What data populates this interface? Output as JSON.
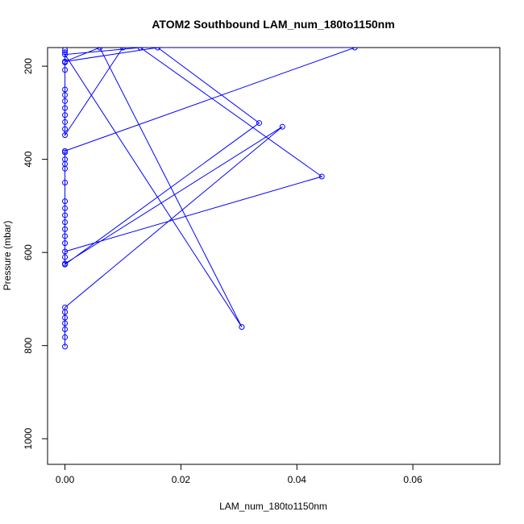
{
  "chart_data": {
    "type": "line",
    "title": "ATOM2 Southbound LAM_num_180to1150nm",
    "xlabel": "LAM_num_180to1150nm",
    "ylabel": "Pressure (mbar)",
    "xlim": [
      -0.003,
      0.075
    ],
    "ylim": [
      1055,
      160
    ],
    "y_reversed": true,
    "x_ticks": [
      0,
      0.02,
      0.04,
      0.06
    ],
    "x_tick_labels": [
      "0.00",
      "0.02",
      "0.04",
      "0.06"
    ],
    "y_ticks": [
      200,
      400,
      600,
      800,
      1000
    ],
    "y_tick_labels": [
      "200",
      "400",
      "600",
      "800",
      "1000"
    ],
    "grid": false,
    "series": [
      {
        "color": "#0000ff",
        "marker": "open-circle",
        "points": [
          {
            "x": 0,
            "y": 802
          },
          {
            "x": 0,
            "y": 782
          },
          {
            "x": 0,
            "y": 765
          },
          {
            "x": 0,
            "y": 752
          },
          {
            "x": 0,
            "y": 740
          },
          {
            "x": 0,
            "y": 728
          },
          {
            "x": 0,
            "y": 718
          },
          {
            "x": 0.0375,
            "y": 330
          },
          {
            "x": 0,
            "y": 624
          },
          {
            "x": 0,
            "y": 610
          },
          {
            "x": 0,
            "y": 598
          },
          {
            "x": 0.0443,
            "y": 437
          },
          {
            "x": 0.013,
            "y": 160
          },
          {
            "x": 0,
            "y": 175
          },
          {
            "x": 0.0305,
            "y": 760
          },
          {
            "x": 0.006,
            "y": 160
          },
          {
            "x": 0,
            "y": 190
          },
          {
            "x": 0.016,
            "y": 160
          },
          {
            "x": 0.0335,
            "y": 322
          },
          {
            "x": 0,
            "y": 626
          },
          {
            "x": 0,
            "y": 580
          },
          {
            "x": 0,
            "y": 565
          },
          {
            "x": 0,
            "y": 550
          },
          {
            "x": 0,
            "y": 535
          },
          {
            "x": 0,
            "y": 520
          },
          {
            "x": 0,
            "y": 505
          },
          {
            "x": 0,
            "y": 490
          },
          {
            "x": 0,
            "y": 450
          },
          {
            "x": 0,
            "y": 420
          },
          {
            "x": 0,
            "y": 410
          },
          {
            "x": 0,
            "y": 400
          },
          {
            "x": 0,
            "y": 385
          },
          {
            "x": 0,
            "y": 382
          },
          {
            "x": 0.05,
            "y": 160
          },
          {
            "x": 0.01,
            "y": 160
          },
          {
            "x": 0,
            "y": 348
          },
          {
            "x": 0,
            "y": 335
          },
          {
            "x": 0,
            "y": 320
          },
          {
            "x": 0,
            "y": 305
          },
          {
            "x": 0,
            "y": 290
          },
          {
            "x": 0,
            "y": 275
          },
          {
            "x": 0,
            "y": 262
          },
          {
            "x": 0,
            "y": 250
          },
          {
            "x": 0,
            "y": 208
          },
          {
            "x": 0,
            "y": 192
          },
          {
            "x": 0,
            "y": 170
          },
          {
            "x": 0,
            "y": 165
          }
        ]
      }
    ]
  }
}
